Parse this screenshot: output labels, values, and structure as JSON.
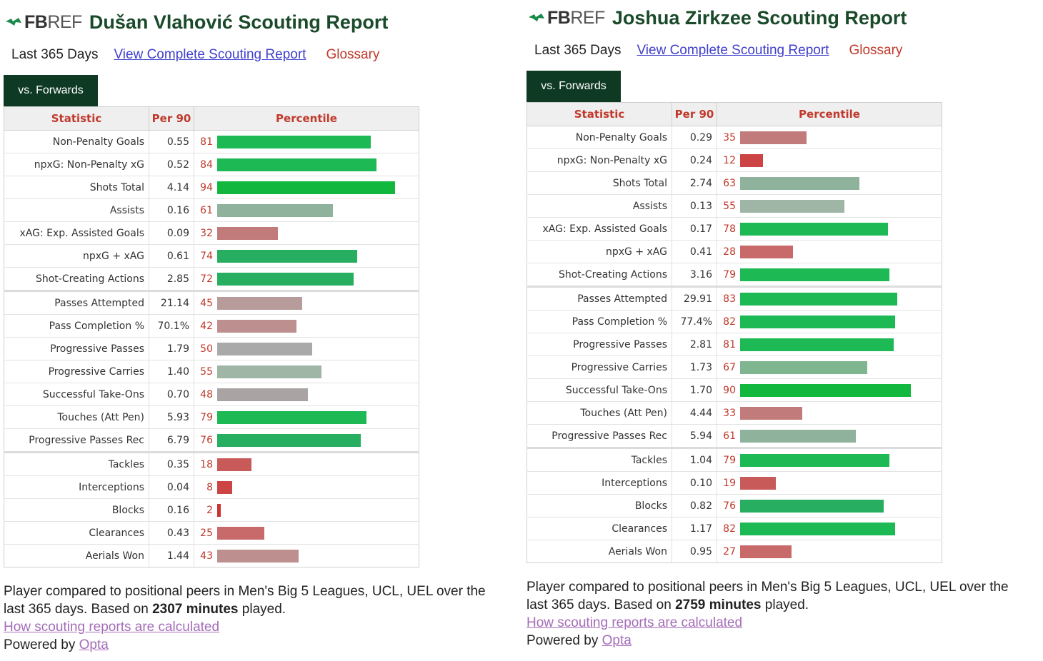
{
  "source_logo": {
    "fb": "FB",
    "ref": "REF"
  },
  "reports": [
    {
      "title": "Dušan Vlahović Scouting Report",
      "period": "Last 365 Days",
      "view_link": "View Complete Scouting Report",
      "glossary": "Glossary",
      "tab": "vs. Forwards",
      "headers": {
        "statistic": "Statistic",
        "per90": "Per 90",
        "percentile": "Percentile"
      },
      "rows": [
        {
          "stat": "Non-Penalty Goals",
          "per90": "0.55",
          "percentile": 81,
          "color": "#1db954"
        },
        {
          "stat": "npxG: Non-Penalty xG",
          "per90": "0.52",
          "percentile": 84,
          "color": "#1db954"
        },
        {
          "stat": "Shots Total",
          "per90": "4.14",
          "percentile": 94,
          "color": "#12b83e"
        },
        {
          "stat": "Assists",
          "per90": "0.16",
          "percentile": 61,
          "color": "#8fb29c"
        },
        {
          "stat": "xAG: Exp. Assisted Goals",
          "per90": "0.09",
          "percentile": 32,
          "color": "#c27b7b"
        },
        {
          "stat": "npxG + xAG",
          "per90": "0.61",
          "percentile": 74,
          "color": "#27ae60"
        },
        {
          "stat": "Shot-Creating Actions",
          "per90": "2.85",
          "percentile": 72,
          "color": "#27ae60"
        },
        {
          "stat": "Passes Attempted",
          "per90": "21.14",
          "percentile": 45,
          "color": "#b89c9c",
          "sep": true
        },
        {
          "stat": "Pass Completion %",
          "per90": "70.1%",
          "percentile": 42,
          "color": "#bd8f8f"
        },
        {
          "stat": "Progressive Passes",
          "per90": "1.79",
          "percentile": 50,
          "color": "#a9a9a9"
        },
        {
          "stat": "Progressive Carries",
          "per90": "1.40",
          "percentile": 55,
          "color": "#9fb5a5"
        },
        {
          "stat": "Successful Take-Ons",
          "per90": "0.70",
          "percentile": 48,
          "color": "#aaa3a3"
        },
        {
          "stat": "Touches (Att Pen)",
          "per90": "5.93",
          "percentile": 79,
          "color": "#1db954"
        },
        {
          "stat": "Progressive Passes Rec",
          "per90": "6.79",
          "percentile": 76,
          "color": "#27ae60"
        },
        {
          "stat": "Tackles",
          "per90": "0.35",
          "percentile": 18,
          "color": "#c85a5a",
          "sep": true
        },
        {
          "stat": "Interceptions",
          "per90": "0.04",
          "percentile": 8,
          "color": "#cc4444"
        },
        {
          "stat": "Blocks",
          "per90": "0.16",
          "percentile": 2,
          "color": "#cc3333"
        },
        {
          "stat": "Clearances",
          "per90": "0.43",
          "percentile": 25,
          "color": "#c86a6a"
        },
        {
          "stat": "Aerials Won",
          "per90": "1.44",
          "percentile": 43,
          "color": "#bd8f8f"
        }
      ],
      "footer": {
        "line1": "Player compared to positional peers in Men's Big 5 Leagues, UCL, UEL over the",
        "line2_pre": "last 365 days. Based on ",
        "minutes": "2307 minutes",
        "line2_post": " played.",
        "how_link": "How scouting reports are calculated",
        "powered": "Powered by ",
        "opta": "Opta"
      }
    },
    {
      "title": "Joshua Zirkzee Scouting Report",
      "period": "Last 365 Days",
      "view_link": "View Complete Scouting Report",
      "glossary": "Glossary",
      "tab": "vs. Forwards",
      "headers": {
        "statistic": "Statistic",
        "per90": "Per 90",
        "percentile": "Percentile"
      },
      "rows": [
        {
          "stat": "Non-Penalty Goals",
          "per90": "0.29",
          "percentile": 35,
          "color": "#c27b7b"
        },
        {
          "stat": "npxG: Non-Penalty xG",
          "per90": "0.24",
          "percentile": 12,
          "color": "#cc4444"
        },
        {
          "stat": "Shots Total",
          "per90": "2.74",
          "percentile": 63,
          "color": "#8fb29c"
        },
        {
          "stat": "Assists",
          "per90": "0.13",
          "percentile": 55,
          "color": "#9fb5a5"
        },
        {
          "stat": "xAG: Exp. Assisted Goals",
          "per90": "0.17",
          "percentile": 78,
          "color": "#1db954"
        },
        {
          "stat": "npxG + xAG",
          "per90": "0.41",
          "percentile": 28,
          "color": "#c86a6a"
        },
        {
          "stat": "Shot-Creating Actions",
          "per90": "3.16",
          "percentile": 79,
          "color": "#1db954"
        },
        {
          "stat": "Passes Attempted",
          "per90": "29.91",
          "percentile": 83,
          "color": "#1db954",
          "sep": true
        },
        {
          "stat": "Pass Completion %",
          "per90": "77.4%",
          "percentile": 82,
          "color": "#1db954"
        },
        {
          "stat": "Progressive Passes",
          "per90": "2.81",
          "percentile": 81,
          "color": "#1db954"
        },
        {
          "stat": "Progressive Carries",
          "per90": "1.73",
          "percentile": 67,
          "color": "#7fb58f"
        },
        {
          "stat": "Successful Take-Ons",
          "per90": "1.70",
          "percentile": 90,
          "color": "#12b83e"
        },
        {
          "stat": "Touches (Att Pen)",
          "per90": "4.44",
          "percentile": 33,
          "color": "#c27b7b"
        },
        {
          "stat": "Progressive Passes Rec",
          "per90": "5.94",
          "percentile": 61,
          "color": "#8fb29c"
        },
        {
          "stat": "Tackles",
          "per90": "1.04",
          "percentile": 79,
          "color": "#1db954",
          "sep": true
        },
        {
          "stat": "Interceptions",
          "per90": "0.10",
          "percentile": 19,
          "color": "#c85a5a"
        },
        {
          "stat": "Blocks",
          "per90": "0.82",
          "percentile": 76,
          "color": "#27ae60"
        },
        {
          "stat": "Clearances",
          "per90": "1.17",
          "percentile": 82,
          "color": "#1db954"
        },
        {
          "stat": "Aerials Won",
          "per90": "0.95",
          "percentile": 27,
          "color": "#c86a6a"
        }
      ],
      "footer": {
        "line1": "Player compared to positional peers in Men's Big 5 Leagues, UCL, UEL over the",
        "line2_pre": "last 365 days. Based on ",
        "minutes": "2759 minutes",
        "line2_post": " played.",
        "how_link": "How scouting reports are calculated",
        "powered": "Powered by ",
        "opta": "Opta"
      }
    }
  ]
}
